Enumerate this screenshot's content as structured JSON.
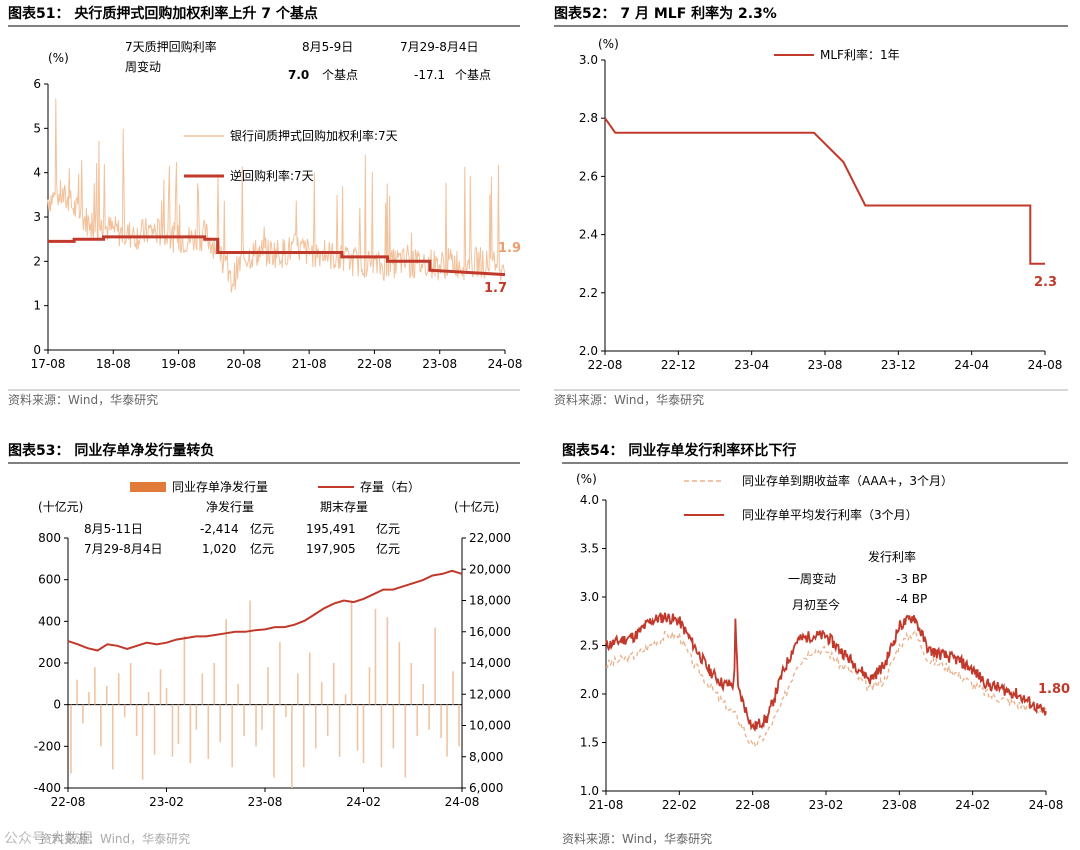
{
  "colors": {
    "red": "#c0392b",
    "peach": "#f2c29c",
    "orange": "#e07b3a",
    "dashed": "#eab08a",
    "bar": "#f0c4a2",
    "label_peach": "#e8a070"
  },
  "source_text": "资料来源：Wind，华泰研究",
  "watermark": "公众号·大数据",
  "chart_data": [
    {
      "id": "c51",
      "type": "line",
      "title": "图表51：  央行质押式回购加权利率上升 7 个基点",
      "unit": "(%)",
      "ylim": [
        0,
        6
      ],
      "yticks": [
        0,
        1,
        2,
        3,
        4,
        5,
        6
      ],
      "xticks": [
        "17-08",
        "18-08",
        "19-08",
        "20-08",
        "21-08",
        "22-08",
        "23-08",
        "24-08"
      ],
      "series": [
        {
          "name": "银行间质押式回购加权利率:7天",
          "end_label": "1.9",
          "x": [
            0,
            0.2,
            0.4,
            0.6,
            0.8,
            1,
            1.2,
            1.4,
            1.6,
            1.8,
            2,
            2.2,
            2.4,
            2.6,
            2.8,
            3,
            3.2,
            3.4,
            3.6,
            3.8,
            4,
            4.2,
            4.4,
            4.6,
            4.8,
            5,
            5.2,
            5.4,
            5.6,
            5.8,
            6,
            6.2,
            6.4,
            6.6,
            6.8,
            7
          ],
          "values": [
            3.4,
            3.5,
            3.2,
            2.9,
            2.8,
            2.7,
            2.6,
            2.6,
            2.7,
            2.6,
            2.5,
            2.5,
            2.6,
            2.3,
            1.5,
            2.1,
            2.2,
            2.2,
            2.2,
            2.3,
            2.2,
            2.2,
            2.1,
            2.0,
            2.0,
            1.9,
            1.9,
            2.0,
            1.9,
            2.0,
            1.9,
            2.0,
            1.9,
            2.0,
            1.9,
            1.9
          ]
        },
        {
          "name": "逆回购利率:7天",
          "end_label": "1.7",
          "x": [
            0,
            0.4,
            0.4,
            0.85,
            0.85,
            2.4,
            2.4,
            2.6,
            2.6,
            4.5,
            4.5,
            5.2,
            5.2,
            5.85,
            5.85,
            7
          ],
          "values": [
            2.45,
            2.45,
            2.5,
            2.5,
            2.55,
            2.55,
            2.5,
            2.5,
            2.2,
            2.2,
            2.1,
            2.1,
            2.0,
            2.0,
            1.8,
            1.7
          ]
        }
      ],
      "notes": {
        "label": "7天质押回购利率",
        "label2": "周变动",
        "d1": "8月5-9日",
        "d2": "7月29-8月4日",
        "v1": "7.0",
        "v2": "-17.1",
        "u": "个基点"
      }
    },
    {
      "id": "c52",
      "type": "line",
      "title": "图表52：  7 月 MLF 利率为 2.3%",
      "unit": "(%)",
      "ylim": [
        2.0,
        3.0
      ],
      "yticks": [
        "2.0",
        "2.2",
        "2.4",
        "2.6",
        "2.8",
        "3.0"
      ],
      "xticks": [
        "22-08",
        "22-12",
        "23-04",
        "23-08",
        "23-12",
        "24-04",
        "24-08"
      ],
      "series": [
        {
          "name": "MLF利率：1年",
          "end_label": "2.3",
          "x": [
            0,
            0.14,
            0.14,
            2.85,
            2.85,
            3.25,
            3.25,
            3.55,
            3.55,
            5.8,
            5.8,
            6.0
          ],
          "values": [
            2.8,
            2.75,
            2.75,
            2.75,
            2.75,
            2.65,
            2.65,
            2.5,
            2.5,
            2.5,
            2.3,
            2.3
          ]
        }
      ]
    },
    {
      "id": "c53",
      "type": "bar",
      "title": "图表53：  同业存单净发行量转负",
      "unit_left": "(十亿元)",
      "unit_right": "(十亿元)",
      "ylim_left": [
        -400,
        800
      ],
      "yticks_left": [
        "-400",
        "-200",
        "0",
        "200",
        "400",
        "600",
        "800"
      ],
      "ylim_right": [
        6000,
        22000
      ],
      "yticks_right": [
        "6,000",
        "8,000",
        "10,000",
        "12,000",
        "14,000",
        "16,000",
        "18,000",
        "20,000",
        "22,000"
      ],
      "xticks": [
        "22-08",
        "23-02",
        "23-08",
        "24-02",
        "24-08"
      ],
      "legend": [
        "同业存单净发行量",
        "存量（右）"
      ],
      "bars": [
        -330,
        120,
        -90,
        60,
        180,
        -200,
        90,
        -310,
        150,
        -60,
        200,
        -150,
        -360,
        60,
        -240,
        170,
        80,
        -250,
        -190,
        330,
        -280,
        -120,
        150,
        -260,
        200,
        -180,
        410,
        -300,
        100,
        -150,
        500,
        -200,
        -120,
        180,
        -350,
        300,
        -60,
        -400,
        150,
        -300,
        250,
        -210,
        110,
        -150,
        200,
        -250,
        50,
        500,
        -220,
        -280,
        180,
        460,
        -300,
        420,
        -210,
        300,
        -350,
        200,
        -150,
        100,
        -120,
        370,
        -160,
        -250,
        160,
        -200
      ],
      "stock": [
        15400,
        15200,
        14950,
        14800,
        15200,
        15100,
        14900,
        15100,
        15300,
        15200,
        15300,
        15500,
        15600,
        15700,
        15700,
        15800,
        15900,
        16000,
        16000,
        16100,
        16150,
        16300,
        16300,
        16450,
        16700,
        17100,
        17500,
        17800,
        18000,
        17900,
        18100,
        18400,
        18700,
        18700,
        18900,
        19100,
        19300,
        19600,
        19700,
        19900,
        19700
      ],
      "notes": {
        "h1": "净发行量",
        "h2": "期末存量",
        "r1": "8月5-11日",
        "r2": "7月29-8月4日",
        "n1": "-2,414",
        "n2": "1,020",
        "s1": "195,491",
        "s2": "197,905",
        "yi": "亿元"
      }
    },
    {
      "id": "c54",
      "type": "line",
      "title": "图表54：  同业存单发行利率环比下行",
      "unit": "(%)",
      "ylim": [
        1.0,
        4.0
      ],
      "yticks": [
        "1.0",
        "1.5",
        "2.0",
        "2.5",
        "3.0",
        "3.5",
        "4.0"
      ],
      "xticks": [
        "21-08",
        "22-02",
        "22-08",
        "23-02",
        "23-08",
        "24-02",
        "24-08"
      ],
      "series": [
        {
          "name": "同业存单到期收益率（AAA+，3个月）",
          "x": [
            0,
            0.2,
            0.4,
            0.6,
            0.8,
            1.0,
            1.2,
            1.4,
            1.6,
            1.8,
            2.0,
            2.2,
            2.4,
            2.6,
            2.8,
            3.0,
            3.2,
            3.4,
            3.6,
            3.8,
            4.0,
            4.2,
            4.4,
            4.6,
            4.8,
            5.0,
            5.2,
            5.4,
            5.6,
            5.8,
            6.0
          ],
          "values": [
            2.3,
            2.35,
            2.4,
            2.5,
            2.6,
            2.6,
            2.3,
            2.1,
            1.9,
            1.75,
            1.45,
            1.6,
            1.9,
            2.3,
            2.45,
            2.45,
            2.3,
            2.2,
            2.05,
            2.15,
            2.5,
            2.65,
            2.35,
            2.3,
            2.2,
            2.1,
            2.0,
            1.95,
            1.9,
            1.85,
            1.82
          ]
        },
        {
          "name": "同业存单平均发行利率（3个月）",
          "end_label": "1.80",
          "x": [
            0,
            0.2,
            0.4,
            0.6,
            0.8,
            1.0,
            1.2,
            1.4,
            1.6,
            1.75,
            1.76,
            1.8,
            2.0,
            2.2,
            2.4,
            2.6,
            2.8,
            3.0,
            3.2,
            3.4,
            3.6,
            3.8,
            4.0,
            4.2,
            4.4,
            4.6,
            4.8,
            5.0,
            5.2,
            5.4,
            5.6,
            5.8,
            6.0
          ],
          "values": [
            2.5,
            2.55,
            2.6,
            2.75,
            2.8,
            2.75,
            2.5,
            2.25,
            2.1,
            2.1,
            2.9,
            2.05,
            1.65,
            1.75,
            2.2,
            2.55,
            2.6,
            2.6,
            2.45,
            2.3,
            2.15,
            2.3,
            2.7,
            2.8,
            2.45,
            2.4,
            2.35,
            2.25,
            2.1,
            2.05,
            2.0,
            1.9,
            1.8
          ]
        }
      ],
      "notes": {
        "h": "发行利率",
        "r1": "一周变动",
        "r2": "月初至今",
        "v1": "-3 BP",
        "v2": "-4 BP"
      }
    }
  ]
}
